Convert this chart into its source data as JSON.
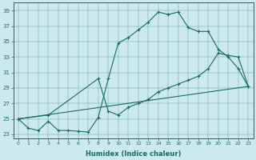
{
  "xlabel": "Humidex (Indice chaleur)",
  "background_color": "#cceaed",
  "line_color": "#1a6b5e",
  "xlim": [
    -0.5,
    23.5
  ],
  "ylim": [
    22.5,
    40.0
  ],
  "yticks": [
    23,
    25,
    27,
    29,
    31,
    33,
    35,
    37,
    39
  ],
  "xticks": [
    0,
    1,
    2,
    3,
    4,
    5,
    6,
    7,
    8,
    9,
    10,
    11,
    12,
    13,
    14,
    15,
    16,
    17,
    18,
    19,
    20,
    21,
    22,
    23
  ],
  "series1": [
    [
      0,
      25.0
    ],
    [
      1,
      23.8
    ],
    [
      2,
      23.5
    ],
    [
      3,
      24.7
    ],
    [
      4,
      23.5
    ],
    [
      5,
      23.5
    ],
    [
      6,
      23.4
    ],
    [
      7,
      23.3
    ],
    [
      8,
      25.2
    ],
    [
      9,
      30.2
    ],
    [
      10,
      34.8
    ],
    [
      11,
      35.5
    ],
    [
      12,
      36.5
    ],
    [
      13,
      37.5
    ],
    [
      14,
      38.8
    ],
    [
      15,
      38.5
    ],
    [
      16,
      38.8
    ],
    [
      17,
      36.8
    ],
    [
      18,
      36.3
    ],
    [
      19,
      36.3
    ],
    [
      20,
      34.0
    ],
    [
      21,
      33.0
    ],
    [
      22,
      31.5
    ],
    [
      23,
      29.2
    ]
  ],
  "series2": [
    [
      0,
      25.0
    ],
    [
      23,
      29.2
    ]
  ],
  "series3": [
    [
      0,
      25.0
    ],
    [
      3,
      25.5
    ],
    [
      8,
      30.2
    ],
    [
      9,
      26.0
    ],
    [
      10,
      25.5
    ],
    [
      11,
      26.5
    ],
    [
      12,
      27.0
    ],
    [
      13,
      27.5
    ],
    [
      14,
      28.5
    ],
    [
      15,
      29.0
    ],
    [
      16,
      29.5
    ],
    [
      17,
      30.0
    ],
    [
      18,
      30.5
    ],
    [
      19,
      31.5
    ],
    [
      20,
      33.5
    ],
    [
      21,
      33.2
    ],
    [
      22,
      33.0
    ],
    [
      23,
      29.2
    ]
  ]
}
